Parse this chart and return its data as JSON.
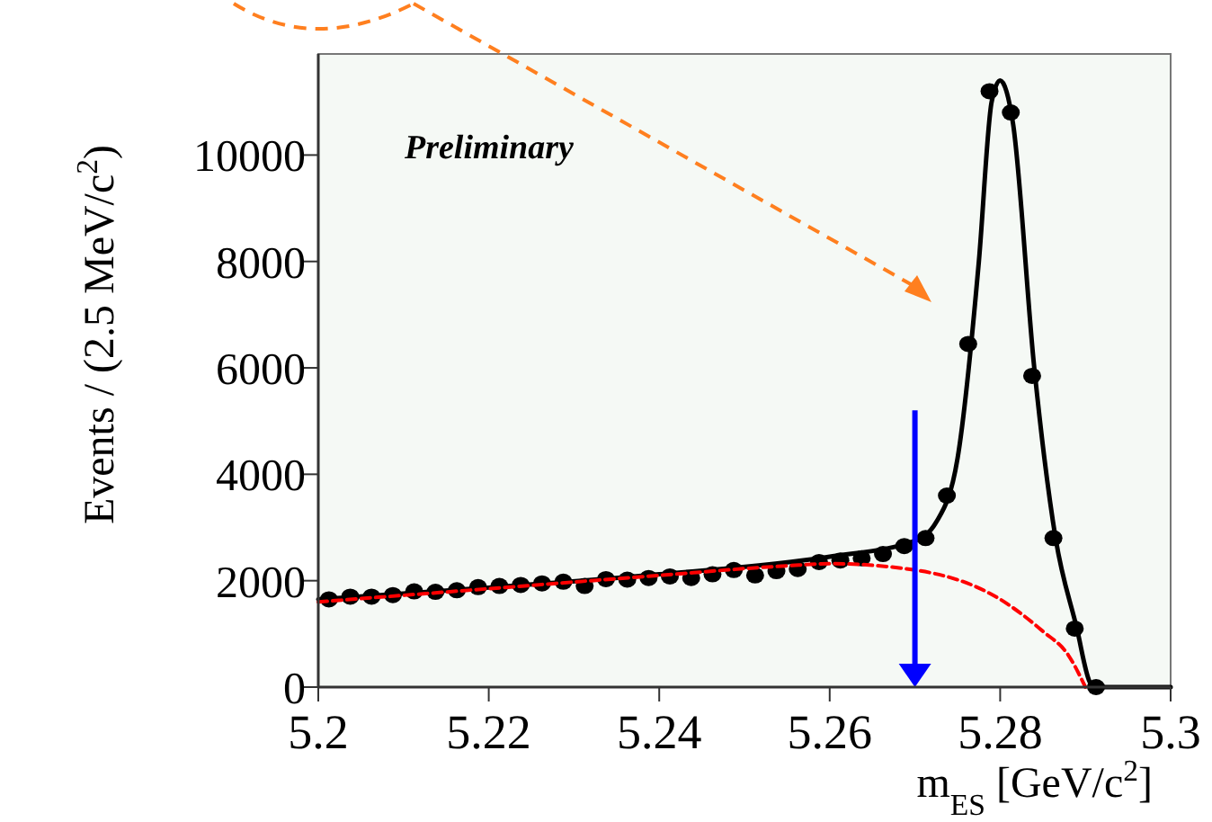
{
  "chart_data": {
    "type": "scatter",
    "xlabel": "m$_{ES}$  [GeV/c$^{2}$]",
    "ylabel": "Events / (2.5 MeV/c$^{2}$)",
    "xlim": [
      5.2,
      5.3
    ],
    "xticks": [
      5.2,
      5.22,
      5.24,
      5.26,
      5.28,
      5.3
    ],
    "ylim": [
      0,
      11900
    ],
    "yticks": [
      0,
      2000,
      4000,
      6000,
      8000,
      10000
    ],
    "grid": false,
    "annotations": [
      "Preliminary"
    ],
    "ref_lines": [
      {
        "axis": "x",
        "value": 5.27,
        "color": "#0000ff"
      }
    ],
    "series": [
      {
        "marker": "circle",
        "color": "#000000",
        "x": [
          5.20125,
          5.20375,
          5.20625,
          5.20875,
          5.21125,
          5.21375,
          5.21625,
          5.21875,
          5.22125,
          5.22375,
          5.22625,
          5.22875,
          5.23125,
          5.23375,
          5.23625,
          5.23875,
          5.24125,
          5.24375,
          5.24625,
          5.24875,
          5.25125,
          5.25375,
          5.25625,
          5.25875,
          5.26125,
          5.26375,
          5.26625,
          5.26875,
          5.27125,
          5.27375,
          5.27625,
          5.27875,
          5.28125,
          5.28375,
          5.28625,
          5.28875,
          5.29125
        ],
        "values": [
          1650,
          1700,
          1700,
          1730,
          1800,
          1790,
          1820,
          1880,
          1900,
          1920,
          1950,
          1980,
          1900,
          2030,
          2020,
          2050,
          2080,
          2050,
          2120,
          2200,
          2100,
          2180,
          2220,
          2350,
          2380,
          2420,
          2500,
          2650,
          2800,
          3600,
          6450,
          11200,
          10800,
          5850,
          2800,
          1100,
          0
        ]
      },
      {
        "type": "line",
        "marker": "none",
        "color": "#000000",
        "line_style": "solid",
        "x": [
          5.2,
          5.22,
          5.24,
          5.26,
          5.27,
          5.2725,
          5.275,
          5.2775,
          5.279,
          5.28,
          5.2815,
          5.284,
          5.2865,
          5.289,
          5.2905,
          5.291,
          5.3
        ],
        "values": [
          1650,
          1870,
          2120,
          2450,
          2750,
          3100,
          4300,
          8000,
          11000,
          11400,
          10600,
          6000,
          2800,
          1100,
          100,
          0,
          0
        ]
      },
      {
        "type": "line",
        "marker": "none",
        "color": "#ff0000",
        "line_style": "dashed",
        "x": [
          5.2,
          5.22,
          5.24,
          5.255,
          5.26,
          5.27,
          5.28,
          5.285,
          5.288,
          5.29
        ],
        "values": [
          1600,
          1850,
          2100,
          2280,
          2320,
          2200,
          1650,
          1050,
          600,
          0
        ]
      }
    ]
  }
}
